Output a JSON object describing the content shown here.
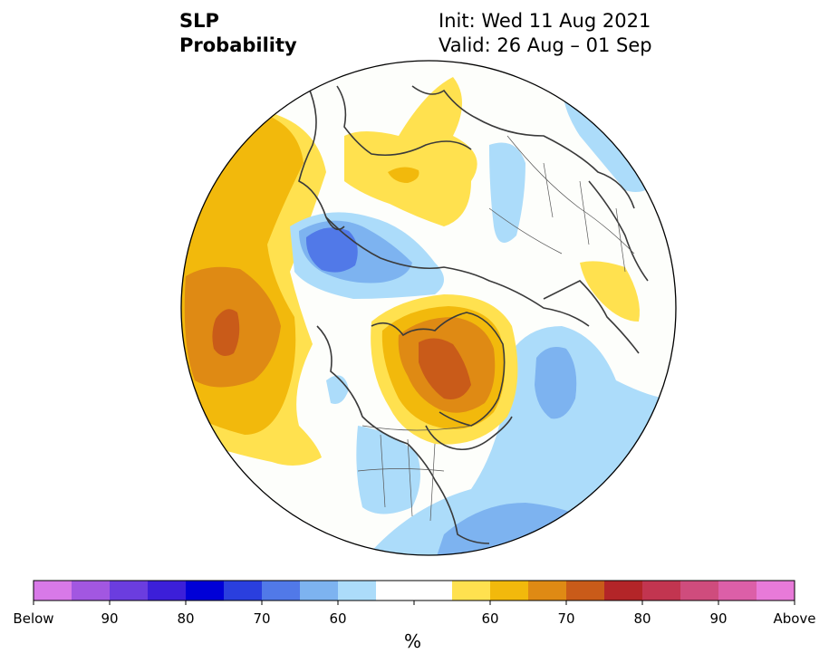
{
  "title": {
    "left_line1": "SLP",
    "left_line2": "Probability",
    "right_line1": "Init: Wed 11 Aug 2021",
    "right_line2": "Valid: 26 Aug – 01 Sep"
  },
  "colorbar": {
    "unit": "%",
    "tick_labels": [
      "Below",
      "90",
      "80",
      "70",
      "60",
      "60",
      "70",
      "80",
      "90",
      "Above"
    ],
    "colors": [
      "#d879e8",
      "#a257e1",
      "#6b3ddf",
      "#3c1fd9",
      "#0000d7",
      "#2a3fde",
      "#5179e8",
      "#7db3f0",
      "#acdcfa",
      "#ffffff",
      "#ffffff",
      "#ffe14f",
      "#f2b90c",
      "#df8a14",
      "#c95b19",
      "#b32528",
      "#c23550",
      "#cf4c7d",
      "#dc5fa8",
      "#e87ad9"
    ]
  },
  "legend_colors": {
    "below_60": "#acdcfa",
    "below_70": "#7db3f0",
    "below_80": "#5179e8",
    "above_60": "#ffe14f",
    "above_70": "#f2b90c",
    "above_80": "#df8a14",
    "above_90": "#c95b19"
  }
}
